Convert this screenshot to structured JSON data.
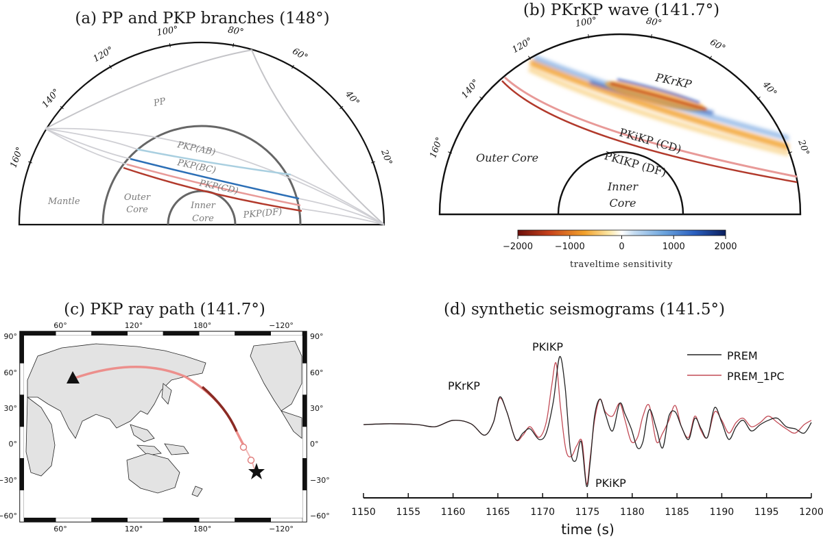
{
  "panel_a": {
    "title": "(a) PP and PKP branches (148°)",
    "angle_labels": [
      "160°",
      "140°",
      "120°",
      "100°",
      "80°",
      "60°",
      "40°",
      "20°"
    ],
    "rays": [
      "PP",
      "PKP(AB)",
      "PKP(BC)",
      "PKP(CD)",
      "PKP(DF)"
    ],
    "regions": {
      "mantle": "Mantle",
      "outer1": "Outer",
      "outer2": "Core",
      "inner1": "Inner",
      "inner2": "Core"
    },
    "colors": {
      "pp": "#c4c4c8",
      "ab": "#a9cfe0",
      "bc": "#2c6fb6",
      "cd": "#e89a98",
      "df": "#b23a2c"
    }
  },
  "panel_b": {
    "title": "(b) PKrKP wave (141.7°)",
    "angle_labels": [
      "160°",
      "140°",
      "120°",
      "100°",
      "80°",
      "60°",
      "40°",
      "20°"
    ],
    "phases": [
      "PKrKP",
      "PKiKP (CD)",
      "PKIKP (DF)"
    ],
    "regions": {
      "outer": "Outer Core",
      "inner1": "Inner",
      "inner2": "Core"
    },
    "colorbar": {
      "ticks": [
        "−2000",
        "−1000",
        "0",
        "1000",
        "2000"
      ],
      "label": "traveltime sensitivity"
    }
  },
  "panel_c": {
    "title": "(c) PKP ray path (141.7°)",
    "top_ticks": [
      "60°",
      "120°",
      "180°",
      "−120°"
    ],
    "bottom_ticks": [
      "60°",
      "120°",
      "180°",
      "−120°"
    ],
    "left_ticks": [
      "90°",
      "60°",
      "30°",
      "0°",
      "−30°",
      "−60°"
    ],
    "right_ticks": [
      "90°",
      "60°",
      "30°",
      "0°",
      "−30°",
      "−60°"
    ]
  },
  "panel_d": {
    "title": "(d) synthetic seismograms (141.5°)",
    "xlabel": "time (s)",
    "phase_labels": [
      "PKrKP",
      "PKIKP",
      "PKiKP"
    ],
    "legend": [
      "PREM",
      "PREM_1PC"
    ]
  },
  "chart_data": {
    "type": "line",
    "title": "(d) synthetic seismograms (141.5°)",
    "xlabel": "time (s)",
    "ylabel": "",
    "xlim": [
      1150,
      1200
    ],
    "x_ticks": [
      1150,
      1155,
      1160,
      1165,
      1170,
      1175,
      1180,
      1185,
      1190,
      1195,
      1200
    ],
    "grid": false,
    "legend_position": "top-right",
    "series": [
      {
        "name": "PREM",
        "color": "#222222",
        "x": [
          1150,
          1153,
          1156,
          1158,
          1160,
          1162,
          1163.5,
          1164.5,
          1165.2,
          1166,
          1167,
          1167.8,
          1168.6,
          1169.6,
          1170.4,
          1171.2,
          1171.9,
          1172.5,
          1173.1,
          1173.7,
          1174.3,
          1174.9,
          1175.3,
          1175.8,
          1176.4,
          1177,
          1177.8,
          1178.6,
          1179.2,
          1179.9,
          1180.6,
          1181.2,
          1181.9,
          1182.7,
          1183.4,
          1184.1,
          1184.8,
          1185.5,
          1186.3,
          1187,
          1187.7,
          1188.4,
          1189.2,
          1190,
          1190.8,
          1191.6,
          1192.4,
          1193.3,
          1194.3,
          1195.2,
          1196.2,
          1197.2,
          1198.2,
          1199.2,
          1200
        ],
        "y": [
          0.0,
          0.02,
          0.0,
          -0.05,
          0.1,
          0.02,
          -0.25,
          0.05,
          0.65,
          0.3,
          -0.35,
          -0.2,
          -0.1,
          -0.35,
          -0.2,
          0.55,
          1.6,
          0.9,
          -0.6,
          -0.85,
          -0.4,
          -1.45,
          -0.9,
          0.2,
          0.6,
          0.25,
          -0.15,
          0.5,
          0.25,
          -0.1,
          -0.55,
          -0.4,
          0.35,
          -0.1,
          -0.55,
          0.2,
          0.3,
          -0.05,
          -0.35,
          0.15,
          -0.1,
          -0.3,
          0.4,
          0.05,
          -0.35,
          -0.05,
          0.1,
          -0.15,
          0.0,
          0.1,
          0.15,
          -0.05,
          -0.1,
          -0.2,
          0.05
        ]
      },
      {
        "name": "PREM_1PC",
        "color": "#c24a55",
        "x": [
          1150,
          1153,
          1156,
          1158,
          1160,
          1162,
          1163.5,
          1164.5,
          1165.2,
          1166,
          1167,
          1167.8,
          1168.6,
          1169.6,
          1170.4,
          1171,
          1171.5,
          1172,
          1172.6,
          1173.2,
          1173.8,
          1174.4,
          1174.9,
          1175.3,
          1175.8,
          1176.4,
          1177,
          1177.8,
          1178.6,
          1179.2,
          1179.9,
          1180.6,
          1181.2,
          1181.9,
          1182.7,
          1183.4,
          1184.1,
          1184.8,
          1185.5,
          1186.3,
          1187,
          1187.7,
          1188.4,
          1189.2,
          1190,
          1190.8,
          1191.6,
          1192.4,
          1193.3,
          1194.3,
          1195.2,
          1196.2,
          1197.2,
          1198.2,
          1199.2,
          1200
        ],
        "y": [
          0.0,
          0.02,
          0.0,
          -0.05,
          0.1,
          0.02,
          -0.25,
          0.05,
          0.62,
          0.3,
          -0.35,
          -0.25,
          -0.05,
          -0.3,
          0.05,
          0.9,
          1.45,
          0.4,
          -0.6,
          -0.75,
          -0.5,
          -0.4,
          -1.4,
          -0.8,
          0.1,
          0.6,
          0.3,
          0.2,
          0.5,
          0.1,
          -0.4,
          -0.3,
          0.2,
          0.45,
          -0.4,
          -0.2,
          0.1,
          0.45,
          -0.05,
          -0.3,
          0.2,
          -0.15,
          -0.3,
          0.3,
          0.1,
          -0.2,
          0.05,
          0.15,
          -0.05,
          0.05,
          0.2,
          0.05,
          -0.1,
          -0.2,
          0.0,
          0.1
        ]
      }
    ]
  }
}
